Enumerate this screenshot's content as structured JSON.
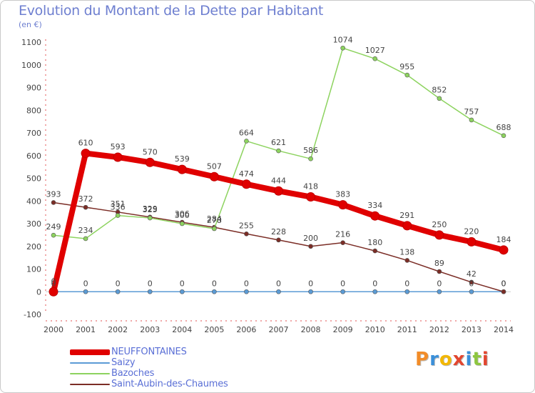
{
  "title": "Evolution du Montant de la Dette par Habitant",
  "subtitle": "(en €)",
  "logo_text": "Proxiti",
  "chart_data": {
    "type": "line",
    "title": "Evolution du Montant de la Dette par Habitant",
    "ylabel": "(en €)",
    "xlabel": "",
    "categories": [
      "2000",
      "2001",
      "2002",
      "2003",
      "2004",
      "2005",
      "2006",
      "2007",
      "2008",
      "2009",
      "2010",
      "2011",
      "2012",
      "2013",
      "2014"
    ],
    "ylim": [
      -100,
      1100
    ],
    "yticks": [
      "-100",
      "0",
      "100",
      "200",
      "300",
      "400",
      "500",
      "600",
      "700",
      "800",
      "900",
      "1000",
      "1100"
    ],
    "grid": false,
    "legend_position": "bottom-left",
    "series": [
      {
        "name": "NEUFFONTAINES",
        "color": "#e00000",
        "values": [
          0,
          610,
          593,
          570,
          539,
          507,
          474,
          444,
          418,
          383,
          334,
          291,
          250,
          220,
          184
        ],
        "labels": [
          "0",
          "610",
          "593",
          "570",
          "539",
          "507",
          "474",
          "444",
          "418",
          "383",
          "334",
          "291",
          "250",
          "220",
          "184"
        ]
      },
      {
        "name": "Saizy",
        "color": "#5b9bd5",
        "values": [
          0,
          0,
          0,
          0,
          0,
          0,
          0,
          0,
          0,
          0,
          0,
          0,
          0,
          0,
          0
        ],
        "labels": [
          "0",
          "0",
          "0",
          "0",
          "0",
          "0",
          "0",
          "0",
          "0",
          "0",
          "0",
          "0",
          "0",
          "0",
          "0"
        ]
      },
      {
        "name": "Bazoches",
        "color": "#8dd35f",
        "values": [
          249,
          234,
          336,
          325,
          300,
          278,
          664,
          621,
          586,
          1074,
          1027,
          955,
          852,
          757,
          688
        ],
        "labels": [
          "249",
          "234",
          "336",
          "325",
          "300",
          "278",
          "664",
          "621",
          "586",
          "1074",
          "1027",
          "955",
          "852",
          "757",
          "688"
        ]
      },
      {
        "name": "Saint-Aubin-des-Chaumes",
        "color": "#7b2d26",
        "values": [
          393,
          372,
          351,
          329,
          306,
          284,
          255,
          228,
          200,
          216,
          180,
          138,
          89,
          42,
          0
        ],
        "labels": [
          "393",
          "372",
          "351",
          "329",
          "306",
          "284",
          "255",
          "228",
          "200",
          "216",
          "180",
          "138",
          "89",
          "42",
          "0"
        ]
      }
    ]
  }
}
